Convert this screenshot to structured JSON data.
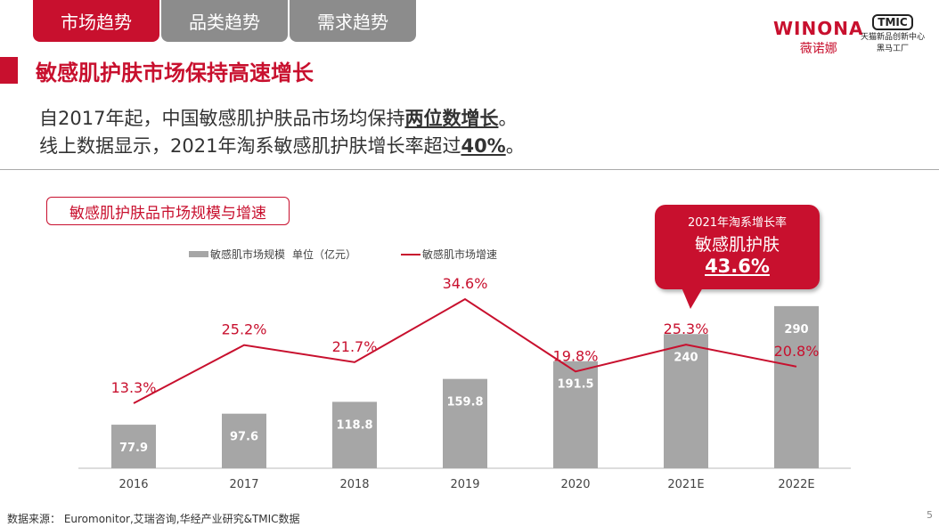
{
  "tabs": [
    {
      "label": "市场趋势",
      "active": true
    },
    {
      "label": "品类趋势",
      "active": false
    },
    {
      "label": "需求趋势",
      "active": false
    }
  ],
  "logo": {
    "brand": "WINONA",
    "brand_cn": "薇诺娜",
    "partner": "TMIC",
    "partner_sub1": "天猫新品创新中心",
    "partner_sub2": "黑马工厂"
  },
  "title": "敏感肌护肤市场保持高速增长",
  "subtitle": {
    "line1_pre": "自2017年起，中国敏感肌护肤品市场均保持",
    "line1_bold": "两位数增长",
    "line1_post": "。",
    "line2_pre": "线上数据显示，2021年淘系敏感肌护肤增长率超过",
    "line2_bold": "40%",
    "line2_post": "。"
  },
  "callout": {
    "line1": "2021年淘系增长率",
    "line2": "敏感肌护肤",
    "value": "43.6%"
  },
  "source": "数据来源： Euromonitor,艾瑞咨询,华经产业研究&TMIC数据",
  "page_number": "5",
  "colors": {
    "accent": "#c8102e",
    "bar": "#a6a6a6"
  },
  "chart_data": {
    "type": "bar+line",
    "title": "敏感肌护肤品市场规模与增速",
    "categories": [
      "2016",
      "2017",
      "2018",
      "2019",
      "2020",
      "2021E",
      "2022E"
    ],
    "series": [
      {
        "name": "敏感肌市场规模",
        "unit_label": "单位（亿元）",
        "type": "bar",
        "values": [
          77.9,
          97.6,
          118.8,
          159.8,
          191.5,
          240,
          290
        ],
        "labels": [
          "77.9",
          "97.6",
          "118.8",
          "159.8",
          "191.5",
          "240",
          "290"
        ]
      },
      {
        "name": "敏感肌市场增速",
        "type": "line",
        "values": [
          13.3,
          25.2,
          21.7,
          34.6,
          19.8,
          25.3,
          20.8
        ],
        "labels": [
          "13.3%",
          "25.2%",
          "21.7%",
          "34.6%",
          "19.8%",
          "25.3%",
          "20.8%"
        ]
      }
    ],
    "legend": "top-left",
    "grid": false
  }
}
